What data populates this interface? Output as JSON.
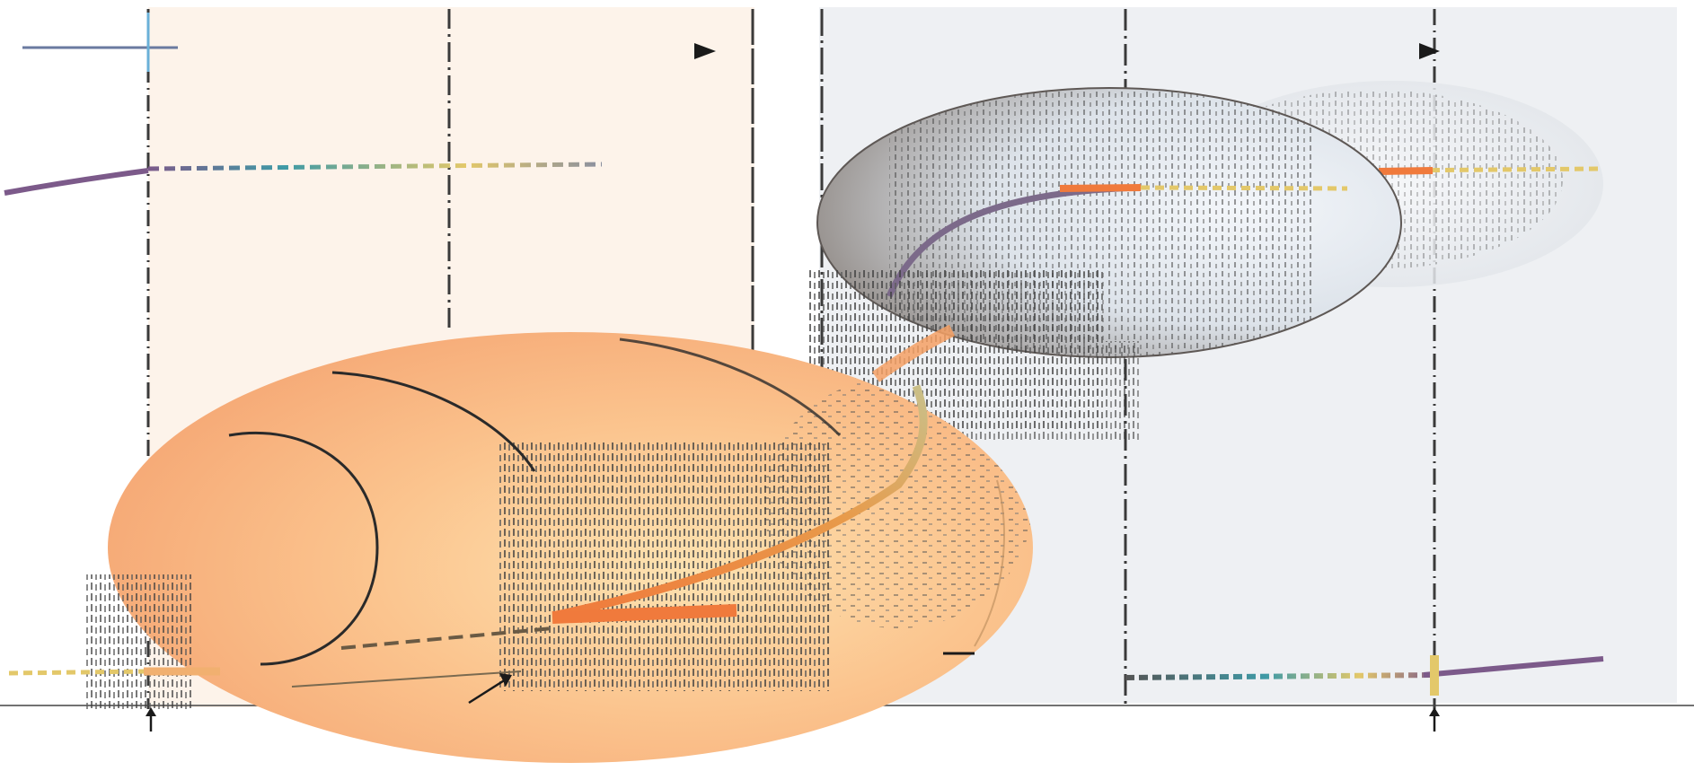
{
  "colors": {
    "page_background": "#ffffff",
    "left_panel_tint": "#fdf3ea",
    "right_panel_tint": "#eef0f3",
    "orange_sphere": "#f9b47f",
    "orange_sphere_light": "#fbd39c",
    "grey_sphere_dark": "#6f6864",
    "grey_sphere_light": "#e6ecf2",
    "ghost_sphere": "#ebeef2",
    "highlight_stripe": "#f07a3c",
    "gradient_purple": "#7c5a8a",
    "gradient_teal": "#3f9aa6",
    "gradient_yellow": "#e3c86a",
    "guide_line": "#3a3a3a",
    "blue_marker": "#6ab0d8"
  },
  "panels": [
    {
      "name": "left-panel",
      "tint": "left_panel_tint"
    },
    {
      "name": "right-panel",
      "tint": "right_panel_tint"
    }
  ],
  "spheres": [
    {
      "name": "orange-sphere",
      "style": "warm",
      "dashed_front_face": true
    },
    {
      "name": "grey-sphere",
      "style": "cool",
      "dashed_front_face": true
    },
    {
      "name": "ghost-sphere",
      "style": "faded",
      "dashed_front_face": true
    }
  ],
  "markers": {
    "arrowheads": [
      "right-pointing",
      "right-pointing"
    ],
    "up_arrows": 2,
    "diagonal_arrows": 1
  },
  "texts": {}
}
